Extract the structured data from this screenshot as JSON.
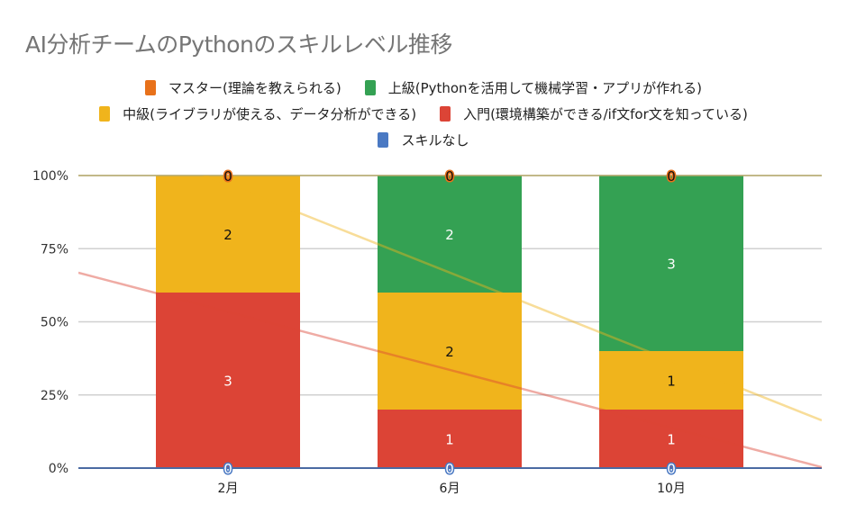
{
  "chart_data": {
    "type": "bar",
    "stacked": "percent",
    "title": "AI分析チームのPythonのスキルレベル推移",
    "categories": [
      "2月",
      "6月",
      "10月"
    ],
    "series": [
      {
        "name": "マスター(理論を教えられる)",
        "color": "#e8711a",
        "values": [
          0,
          0,
          0
        ]
      },
      {
        "name": "上級(Pythonを活用して機械学習・アプリが作れる)",
        "color": "#34a153",
        "values": [
          0,
          2,
          3
        ]
      },
      {
        "name": "中級(ライブラリが使える、データ分析ができる)",
        "color": "#f0b41c",
        "values": [
          2,
          2,
          1
        ]
      },
      {
        "name": "入門(環境構築ができる/if文for文を知っている)",
        "color": "#dc4436",
        "values": [
          3,
          1,
          1
        ]
      },
      {
        "name": "スキルなし",
        "color": "#4a79c3",
        "values": [
          0,
          0,
          0
        ]
      }
    ],
    "stack_order_bottom_to_top": [
      "スキルなし",
      "入門(環境構築ができる/if文for文を知っている)",
      "中級(ライブラリが使える、データ分析ができる)",
      "上級(Pythonを活用して機械学習・アプリが作れる)",
      "マスター(理論を教えられる)"
    ],
    "yticks": [
      "0%",
      "25%",
      "50%",
      "75%",
      "100%"
    ],
    "ylim": [
      0,
      100
    ],
    "xlabel": "",
    "ylabel": "",
    "legend_position": "top",
    "trendlines": [
      {
        "series": "入門(環境構築ができる/if文for文を知っている)",
        "color": "#dc4436"
      },
      {
        "series": "中級(ライブラリが使える、データ分析ができる)",
        "color": "#f0b41c"
      }
    ],
    "grid": true
  }
}
